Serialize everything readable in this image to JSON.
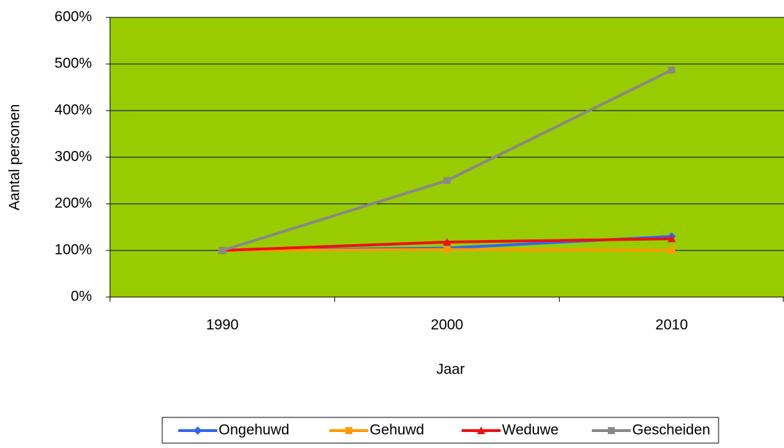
{
  "chart_data": {
    "type": "line",
    "y_label": "Aantal personen",
    "x_label": "Jaar",
    "categories": [
      "1990",
      "2000",
      "2010"
    ],
    "series": [
      {
        "name": "Ongehuwd",
        "color": "#3366ee",
        "marker": "diamond",
        "values": [
          100,
          105,
          130
        ]
      },
      {
        "name": "Gehuwd",
        "color": "#ff9900",
        "marker": "square",
        "values": [
          100,
          102,
          100
        ]
      },
      {
        "name": "Weduwe",
        "color": "#ee1111",
        "marker": "triangle",
        "values": [
          100,
          118,
          125
        ]
      },
      {
        "name": "Gescheiden",
        "color": "#888888",
        "marker": "square",
        "values": [
          100,
          250,
          487
        ]
      }
    ],
    "ylim": [
      0,
      600
    ],
    "yticks": [
      {
        "value": 0,
        "label": "0%"
      },
      {
        "value": 100,
        "label": "100%"
      },
      {
        "value": 200,
        "label": "200%"
      },
      {
        "value": 300,
        "label": "300%"
      },
      {
        "value": 400,
        "label": "400%"
      },
      {
        "value": 500,
        "label": "500%"
      },
      {
        "value": 600,
        "label": "600%"
      }
    ],
    "grid": true,
    "plot_background": "#99cc00",
    "legend": "bottom"
  }
}
